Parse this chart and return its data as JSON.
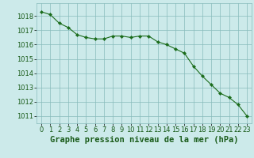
{
  "x": [
    0,
    1,
    2,
    3,
    4,
    5,
    6,
    7,
    8,
    9,
    10,
    11,
    12,
    13,
    14,
    15,
    16,
    17,
    18,
    19,
    20,
    21,
    22,
    23
  ],
  "y": [
    1018.3,
    1018.1,
    1017.5,
    1017.2,
    1016.7,
    1016.5,
    1016.4,
    1016.4,
    1016.6,
    1016.6,
    1016.5,
    1016.6,
    1016.6,
    1016.2,
    1016.0,
    1015.7,
    1015.4,
    1014.5,
    1013.8,
    1013.2,
    1012.6,
    1012.3,
    1011.8,
    1011.0
  ],
  "line_color": "#1a6b1a",
  "marker": "D",
  "marker_size": 2.2,
  "bg_color": "#cceaea",
  "grid_color": "#88bbbb",
  "ylabel_ticks": [
    1011,
    1012,
    1013,
    1014,
    1015,
    1016,
    1017,
    1018
  ],
  "ylim": [
    1010.5,
    1018.9
  ],
  "xlim": [
    -0.5,
    23.5
  ],
  "xlabel": "Graphe pression niveau de la mer (hPa)",
  "xlabel_color": "#1a5c1a",
  "tick_label_color": "#1a5c1a",
  "tick_fontsize": 6.0,
  "xlabel_fontsize": 7.5
}
